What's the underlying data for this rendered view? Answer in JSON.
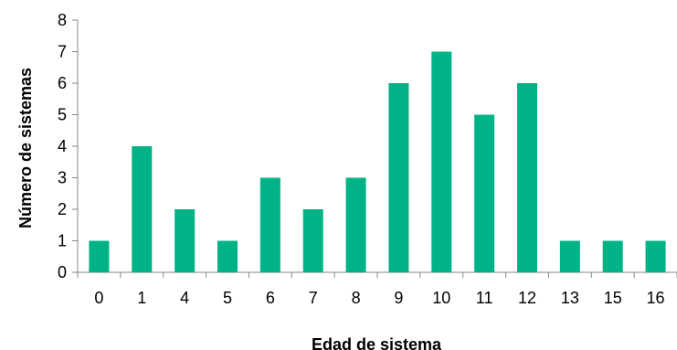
{
  "chart_data": {
    "type": "bar",
    "title": "",
    "xlabel": "Edad de sistema",
    "ylabel": "Número de sistemas",
    "categories": [
      "0",
      "1",
      "4",
      "5",
      "6",
      "7",
      "8",
      "9",
      "10",
      "11",
      "12",
      "13",
      "15",
      "16"
    ],
    "values": [
      1,
      4,
      2,
      1,
      3,
      2,
      3,
      6,
      7,
      5,
      6,
      1,
      1,
      1
    ],
    "ylim": [
      0,
      8
    ],
    "yticks": [
      "0",
      "1",
      "2",
      "3",
      "4",
      "5",
      "6",
      "7",
      "8"
    ],
    "grid": false,
    "legend": "none",
    "bar_color": "#00B386"
  }
}
